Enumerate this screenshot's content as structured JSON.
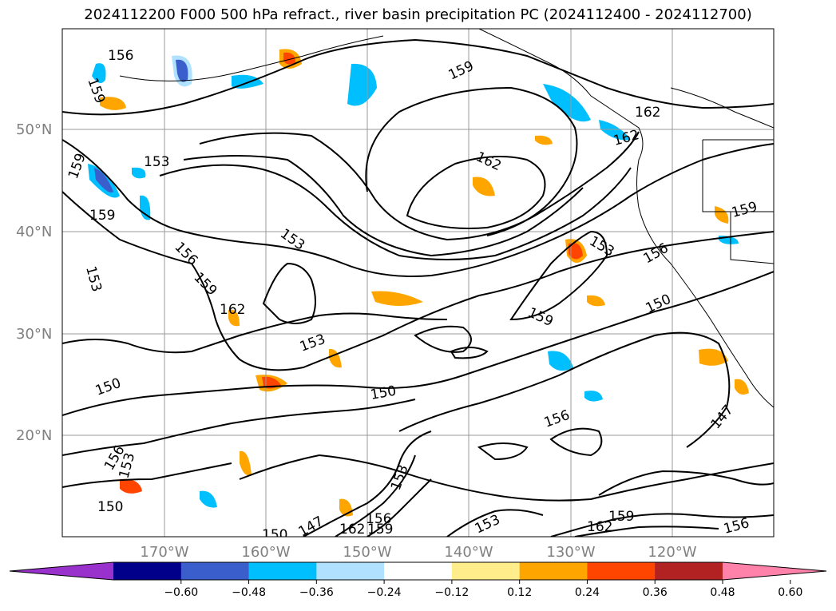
{
  "title": "2024112200 F000 500 hPa refract., river basin precipitation PC (2024112400 - 2024112700)",
  "map": {
    "lat_labels": [
      "50°N",
      "40°N",
      "30°N",
      "20°N"
    ],
    "lon_labels": [
      "170°W",
      "160°W",
      "150°W",
      "140°W",
      "130°W",
      "120°W"
    ],
    "contour_labels": [
      "156",
      "159",
      "159",
      "153",
      "159",
      "159",
      "153",
      "156",
      "159",
      "162",
      "153",
      "153",
      "150",
      "150",
      "156",
      "153",
      "150",
      "159",
      "162",
      "162",
      "162",
      "159",
      "153",
      "156",
      "150",
      "147",
      "156",
      "162",
      "159",
      "153",
      "150",
      "147",
      "159",
      "162",
      "156",
      "153",
      "156"
    ]
  },
  "colorbar": {
    "colors": [
      "#9932cc",
      "#00008b",
      "#3a5fcd",
      "#00bfff",
      "#b0e2ff",
      "#ffffff",
      "#ffec8b",
      "#ffa500",
      "#ff4500",
      "#b22222",
      "#ff82ab"
    ],
    "ticks": [
      "−0.60",
      "−0.48",
      "−0.36",
      "−0.24",
      "−0.12",
      "0.12",
      "0.24",
      "0.36",
      "0.48",
      "0.60"
    ]
  }
}
